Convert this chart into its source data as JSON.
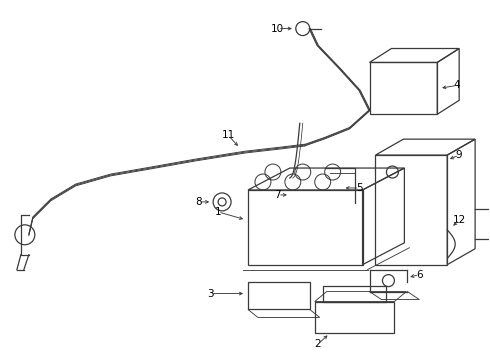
{
  "bg_color": "#ffffff",
  "line_color": "#3a3a3a",
  "lw": 0.9,
  "figsize": [
    4.9,
    3.6
  ],
  "dpi": 100,
  "label_fontsize": 7.5
}
